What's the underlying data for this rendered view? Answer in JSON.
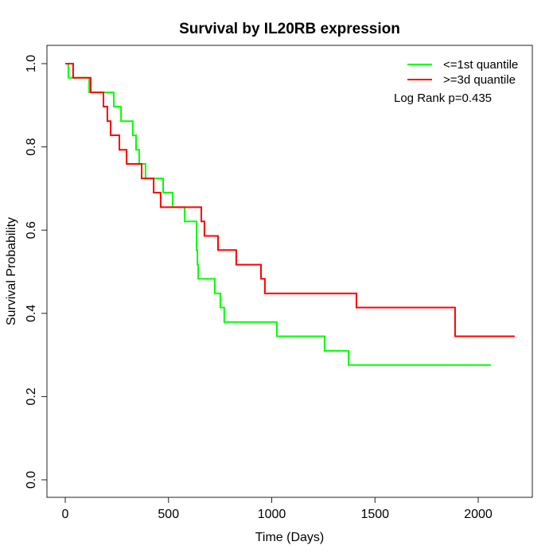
{
  "title": "Survival by IL20RB expression",
  "xlabel": "Time (Days)",
  "ylabel": "Survival Probability",
  "annotation": "Log Rank p=0.435",
  "legend": [
    {
      "label": "<=1st quantile",
      "color": "#00ff00"
    },
    {
      "label": ">=3d quantile",
      "color": "#ff0000"
    }
  ],
  "chart_data": {
    "type": "line",
    "subtype": "kaplan-meier-step",
    "title": "Survival by IL20RB expression",
    "xlabel": "Time (Days)",
    "ylabel": "Survival Probability",
    "xlim": [
      0,
      2260
    ],
    "ylim": [
      0.0,
      1.0
    ],
    "grid": false,
    "legend_position": "top-right",
    "annotation": "Log Rank p=0.435",
    "x_ticks": [
      {
        "value": 0,
        "label": "0"
      },
      {
        "value": 500,
        "label": "500"
      },
      {
        "value": 1000,
        "label": "1000"
      },
      {
        "value": 1500,
        "label": "1500"
      },
      {
        "value": 2000,
        "label": "2000"
      }
    ],
    "y_ticks": [
      {
        "value": 0.0,
        "label": "0.0"
      },
      {
        "value": 0.2,
        "label": "0.2"
      },
      {
        "value": 0.4,
        "label": "0.4"
      },
      {
        "value": 0.6,
        "label": "0.6"
      },
      {
        "value": 0.8,
        "label": "0.8"
      },
      {
        "value": 1.0,
        "label": "1.0"
      }
    ],
    "series": [
      {
        "name": "<=1st quantile",
        "color": "#00ff00",
        "end_time": 2062,
        "points": [
          [
            0,
            1.0
          ],
          [
            15,
            0.966
          ],
          [
            116,
            0.931
          ],
          [
            235,
            0.897
          ],
          [
            270,
            0.862
          ],
          [
            327,
            0.828
          ],
          [
            343,
            0.793
          ],
          [
            358,
            0.759
          ],
          [
            389,
            0.724
          ],
          [
            474,
            0.69
          ],
          [
            520,
            0.655
          ],
          [
            578,
            0.621
          ],
          [
            636,
            0.552
          ],
          [
            640,
            0.517
          ],
          [
            644,
            0.483
          ],
          [
            724,
            0.448
          ],
          [
            751,
            0.414
          ],
          [
            770,
            0.379
          ],
          [
            1025,
            0.345
          ],
          [
            1256,
            0.31
          ],
          [
            1372,
            0.276
          ]
        ]
      },
      {
        "name": ">=3d quantile",
        "color": "#ff0000",
        "end_time": 2177,
        "points": [
          [
            0,
            1.0
          ],
          [
            38,
            0.966
          ],
          [
            123,
            0.931
          ],
          [
            185,
            0.897
          ],
          [
            204,
            0.862
          ],
          [
            220,
            0.828
          ],
          [
            262,
            0.793
          ],
          [
            297,
            0.759
          ],
          [
            370,
            0.724
          ],
          [
            428,
            0.69
          ],
          [
            462,
            0.655
          ],
          [
            659,
            0.621
          ],
          [
            674,
            0.586
          ],
          [
            740,
            0.552
          ],
          [
            828,
            0.517
          ],
          [
            948,
            0.483
          ],
          [
            967,
            0.448
          ],
          [
            1410,
            0.414
          ],
          [
            1888,
            0.345
          ]
        ]
      }
    ]
  }
}
